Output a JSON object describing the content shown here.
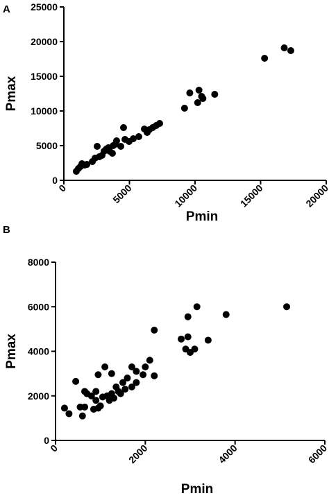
{
  "chart_data": [
    {
      "type": "scatter",
      "panel_label": "A",
      "x_label": "Pmin",
      "y_label": "Pmax",
      "color": "#000000",
      "xlim": [
        0,
        20000
      ],
      "ylim": [
        0,
        25000
      ],
      "xticks": [
        0,
        5000,
        10000,
        15000,
        20000
      ],
      "yticks": [
        0,
        5000,
        10000,
        15000,
        20000,
        25000
      ],
      "x": [
        950,
        1110,
        1270,
        1380,
        1590,
        1750,
        2170,
        2380,
        2540,
        2700,
        2910,
        3070,
        3230,
        3390,
        3490,
        3700,
        3760,
        3920,
        4020,
        4340,
        4550,
        4660,
        4970,
        5290,
        5710,
        6140,
        6350,
        6510,
        6770,
        7040,
        7300,
        9200,
        9600,
        10300,
        10500,
        10200,
        10600,
        11500,
        15300,
        16800,
        17300
      ],
      "y": [
        1300,
        1700,
        2000,
        2400,
        2200,
        2300,
        2700,
        3200,
        4900,
        3400,
        3600,
        4200,
        4500,
        4700,
        4200,
        3900,
        5000,
        5200,
        5700,
        4900,
        7600,
        5900,
        5600,
        6000,
        6300,
        7400,
        6900,
        7300,
        7600,
        7900,
        8200,
        10400,
        12600,
        13000,
        12100,
        11200,
        11800,
        12400,
        17600,
        19100,
        18700
      ]
    },
    {
      "type": "scatter",
      "panel_label": "B",
      "x_label": "Pmin",
      "y_label": "Pmax",
      "color": "#000000",
      "xlim": [
        0,
        6000
      ],
      "ylim": [
        0,
        8000
      ],
      "xticks": [
        0,
        2000,
        4000,
        6000
      ],
      "yticks": [
        0,
        2000,
        4000,
        6000,
        8000
      ],
      "x": [
        200,
        300,
        450,
        550,
        600,
        650,
        650,
        700,
        800,
        850,
        900,
        900,
        950,
        950,
        1000,
        1050,
        1100,
        1150,
        1200,
        1250,
        1250,
        1300,
        1350,
        1400,
        1450,
        1500,
        1550,
        1600,
        1700,
        1700,
        1800,
        1800,
        1950,
        2000,
        2100,
        2200,
        2200,
        2800,
        2900,
        2950,
        2950,
        3000,
        3100,
        3150,
        3400,
        3800,
        5150
      ],
      "y": [
        1450,
        1200,
        2650,
        1500,
        1100,
        2200,
        1500,
        2100,
        2000,
        1400,
        1800,
        2200,
        2950,
        1450,
        1550,
        1950,
        3300,
        2000,
        1800,
        2100,
        3000,
        1900,
        2400,
        2200,
        2100,
        2600,
        2300,
        2800,
        2400,
        3300,
        3100,
        2600,
        2950,
        3300,
        3600,
        2900,
        4950,
        4550,
        4100,
        5550,
        4650,
        3950,
        4100,
        6000,
        4500,
        5650,
        6000
      ]
    }
  ]
}
